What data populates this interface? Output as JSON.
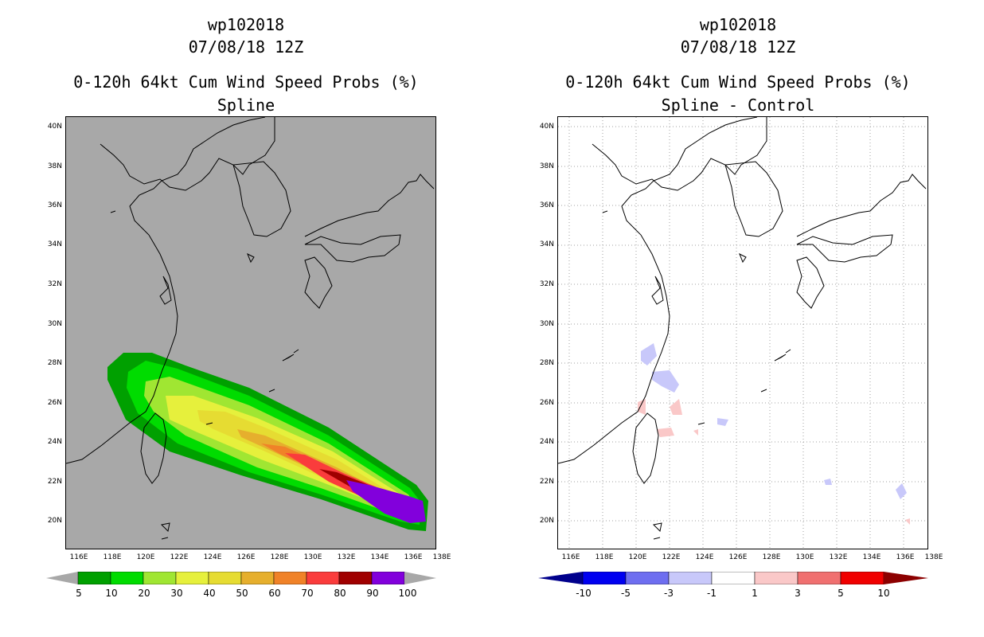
{
  "left": {
    "storm_id": "wp102018",
    "datetime": "07/08/18 12Z",
    "product": "0-120h 64kt Cum Wind Speed Probs (%)",
    "subtitle": "Spline",
    "colors": {
      "background": "#a8a8a8",
      "coast": "#000000"
    },
    "legend": {
      "labels": [
        "5",
        "10",
        "20",
        "30",
        "40",
        "50",
        "60",
        "70",
        "80",
        "90",
        "100"
      ],
      "colors": [
        "#00a000",
        "#00dc00",
        "#a0e632",
        "#e6f03c",
        "#e6dc32",
        "#e6af2d",
        "#f08228",
        "#fa3c3c",
        "#a00000",
        "#8200dc"
      ],
      "left_arrow_color": "#a8a8a8",
      "right_arrow_color": "#a8a8a8"
    }
  },
  "right": {
    "storm_id": "wp102018",
    "datetime": "07/08/18 12Z",
    "product": "0-120h 64kt Cum Wind Speed Probs (%)",
    "subtitle": "Spline - Control",
    "colors": {
      "background": "#ffffff",
      "coast": "#000000",
      "grid": "#a0a0a0"
    },
    "legend": {
      "labels": [
        "-10",
        "-5",
        "-3",
        "-1",
        "1",
        "3",
        "5",
        "10"
      ],
      "colors": [
        "#0000f0",
        "#6e6ef0",
        "#c8c8fa",
        "#ffffff",
        "#fac8c8",
        "#f07070",
        "#f00000"
      ],
      "left_arrow_color": "#00008c",
      "right_arrow_color": "#8c0000"
    }
  },
  "axes": {
    "lat_labels": [
      "40N",
      "38N",
      "36N",
      "34N",
      "32N",
      "30N",
      "28N",
      "26N",
      "24N",
      "22N",
      "20N"
    ],
    "lon_labels": [
      "116E",
      "118E",
      "120E",
      "122E",
      "124E",
      "126E",
      "128E",
      "130E",
      "132E",
      "134E",
      "136E",
      "138E"
    ]
  }
}
